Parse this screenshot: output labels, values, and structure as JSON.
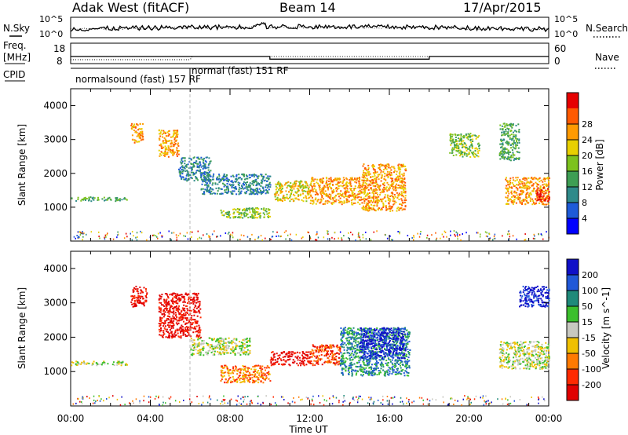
{
  "header": {
    "station": "Adak West (fitACF)",
    "beam": "Beam 14",
    "date": "17/Apr/2015"
  },
  "panels": {
    "nsky_label": "N.Sky",
    "nsearch_label": "N.Search",
    "freq_label_top": "Freq.",
    "freq_label_bottom": "[MHz]",
    "nave_label": "Nave",
    "cpid_label": "CPID",
    "cpid_segments": [
      {
        "label": "normalsound (fast) 157 RF",
        "start_h": 0,
        "end_h": 6
      },
      {
        "label": "normal (fast) 151 RF",
        "start_h": 6,
        "end_h": 24
      }
    ],
    "noise_ticks": [
      "10^5",
      "10^0"
    ],
    "freq_ticks": [
      18,
      8
    ],
    "nave_ticks": [
      60,
      0
    ],
    "freq_level_mhz": [
      {
        "start_h": 0,
        "end_h": 10,
        "value": 11.5
      },
      {
        "start_h": 10,
        "end_h": 18,
        "value": 10.2
      },
      {
        "start_h": 18,
        "end_h": 24,
        "value": 11.5
      }
    ]
  },
  "chart_data": [
    {
      "type": "heatmap",
      "title": "Power",
      "xlabel": "",
      "ylabel": "Slant Range [km]",
      "xlim_hours": [
        0,
        24
      ],
      "ylim": [
        0,
        4500
      ],
      "yticks": [
        1000,
        2000,
        3000,
        4000
      ],
      "colorbar": {
        "label": "Power [dB]",
        "ticks": [
          4,
          8,
          12,
          16,
          20,
          24,
          28
        ],
        "colors": [
          "#0000ff",
          "#1e5bd8",
          "#2f8a8a",
          "#3e9e54",
          "#7cc21e",
          "#e8d000",
          "#ff9a00",
          "#ff5a00",
          "#e60000"
        ]
      },
      "echo_regions": [
        {
          "start_h": 0.0,
          "end_h": 2.8,
          "range_km": [
            1200,
            1320
          ],
          "level": 3
        },
        {
          "start_h": 3.0,
          "end_h": 3.6,
          "range_km": [
            2900,
            3500
          ],
          "level": 6
        },
        {
          "start_h": 4.4,
          "end_h": 5.4,
          "range_km": [
            2500,
            3300
          ],
          "level": 6
        },
        {
          "start_h": 5.4,
          "end_h": 7.0,
          "range_km": [
            1800,
            2500
          ],
          "level": 2
        },
        {
          "start_h": 6.5,
          "end_h": 10.0,
          "range_km": [
            1400,
            2000
          ],
          "level": 2
        },
        {
          "start_h": 7.5,
          "end_h": 10.0,
          "range_km": [
            700,
            1000
          ],
          "level": 4
        },
        {
          "start_h": 10.2,
          "end_h": 12.0,
          "range_km": [
            1200,
            1800
          ],
          "level": 5
        },
        {
          "start_h": 12.0,
          "end_h": 14.6,
          "range_km": [
            1100,
            1900
          ],
          "level": 6
        },
        {
          "start_h": 14.6,
          "end_h": 16.8,
          "range_km": [
            900,
            2300
          ],
          "level": 6
        },
        {
          "start_h": 19.0,
          "end_h": 20.5,
          "range_km": [
            2500,
            3200
          ],
          "level": 4
        },
        {
          "start_h": 21.5,
          "end_h": 22.5,
          "range_km": [
            2400,
            3500
          ],
          "level": 3
        },
        {
          "start_h": 21.8,
          "end_h": 24.0,
          "range_km": [
            1100,
            1900
          ],
          "level": 6
        },
        {
          "start_h": 23.3,
          "end_h": 24.0,
          "range_km": [
            1200,
            1600
          ],
          "level": 8
        }
      ]
    },
    {
      "type": "heatmap",
      "title": "Velocity",
      "xlabel": "Time UT",
      "ylabel": "Slant Range [km]",
      "xlim_hours": [
        0,
        24
      ],
      "ylim": [
        0,
        4500
      ],
      "yticks": [
        1000,
        2000,
        3000,
        4000
      ],
      "xticks": [
        "00:00",
        "04:00",
        "08:00",
        "12:00",
        "16:00",
        "20:00",
        "00:00"
      ],
      "colorbar": {
        "label": "Velocity [m s^-1]",
        "ticks": [
          200,
          100,
          50,
          15,
          -15,
          -50,
          -100,
          -200
        ],
        "colors": [
          "#1010c8",
          "#2058d8",
          "#1f8a7a",
          "#3cbf2c",
          "#c8c8c0",
          "#f0c000",
          "#ff7a00",
          "#ff2a00",
          "#e00000"
        ]
      },
      "echo_regions": [
        {
          "start_h": 0.0,
          "end_h": 2.8,
          "range_km": [
            1200,
            1320
          ],
          "level": 4
        },
        {
          "start_h": 3.0,
          "end_h": 3.8,
          "range_km": [
            2900,
            3500
          ],
          "level": 8
        },
        {
          "start_h": 4.4,
          "end_h": 6.5,
          "range_km": [
            2000,
            3300
          ],
          "level": 8
        },
        {
          "start_h": 6.0,
          "end_h": 9.0,
          "range_km": [
            1500,
            2000
          ],
          "level": 4
        },
        {
          "start_h": 7.5,
          "end_h": 10.0,
          "range_km": [
            700,
            1200
          ],
          "level": 6
        },
        {
          "start_h": 10.0,
          "end_h": 12.0,
          "range_km": [
            1200,
            1600
          ],
          "level": 8
        },
        {
          "start_h": 12.0,
          "end_h": 13.5,
          "range_km": [
            1200,
            1800
          ],
          "level": 7
        },
        {
          "start_h": 13.5,
          "end_h": 17.0,
          "range_km": [
            900,
            2300
          ],
          "level": 2
        },
        {
          "start_h": 14.5,
          "end_h": 16.8,
          "range_km": [
            1400,
            2300
          ],
          "level": 0
        },
        {
          "start_h": 21.5,
          "end_h": 24.0,
          "range_km": [
            1100,
            1900
          ],
          "level": 4
        },
        {
          "start_h": 22.5,
          "end_h": 24.0,
          "range_km": [
            2900,
            3500
          ],
          "level": 0
        }
      ]
    }
  ]
}
